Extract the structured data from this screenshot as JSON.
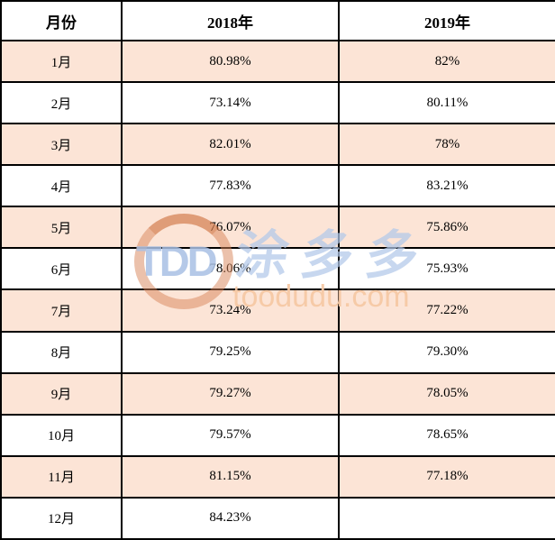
{
  "table": {
    "headers": [
      "月份",
      "2018年",
      "2019年"
    ],
    "rows": [
      {
        "month": "1月",
        "y2018": "80.98%",
        "y2019": "82%"
      },
      {
        "month": "2月",
        "y2018": "73.14%",
        "y2019": "80.11%"
      },
      {
        "month": "3月",
        "y2018": "82.01%",
        "y2019": "78%"
      },
      {
        "month": "4月",
        "y2018": "77.83%",
        "y2019": "83.21%"
      },
      {
        "month": "5月",
        "y2018": "76.07%",
        "y2019": "75.86%"
      },
      {
        "month": "6月",
        "y2018": "78.06%",
        "y2019": "75.93%"
      },
      {
        "month": "7月",
        "y2018": "73.24%",
        "y2019": "77.22%"
      },
      {
        "month": "8月",
        "y2018": "79.25%",
        "y2019": "79.30%"
      },
      {
        "month": "9月",
        "y2018": "79.27%",
        "y2019": "78.05%"
      },
      {
        "month": "10月",
        "y2018": "79.57%",
        "y2019": "78.65%"
      },
      {
        "month": "11月",
        "y2018": "81.15%",
        "y2019": "77.18%"
      },
      {
        "month": "12月",
        "y2018": "84.23%",
        "y2019": ""
      }
    ]
  },
  "chart_data": {
    "type": "table",
    "categories": [
      "1月",
      "2月",
      "3月",
      "4月",
      "5月",
      "6月",
      "7月",
      "8月",
      "9月",
      "10月",
      "11月",
      "12月"
    ],
    "series": [
      {
        "name": "2018年",
        "values": [
          80.98,
          73.14,
          82.01,
          77.83,
          76.07,
          78.06,
          73.24,
          79.25,
          79.27,
          79.57,
          81.15,
          84.23
        ]
      },
      {
        "name": "2019年",
        "values": [
          82,
          80.11,
          78,
          83.21,
          75.86,
          75.93,
          77.22,
          79.3,
          78.05,
          78.65,
          77.18,
          null
        ]
      }
    ],
    "title": "",
    "xlabel": "月份",
    "ylabel": ""
  },
  "watermark": {
    "logo_text": "TDD",
    "brand_cn": "涂多多",
    "domain": "toodudu.com"
  },
  "colors": {
    "row_highlight": "#fce4d6",
    "border": "#000000",
    "watermark_blue": "#b2c7e9",
    "watermark_orange": "#f6c8a4",
    "logo_ring": "#d88458"
  }
}
